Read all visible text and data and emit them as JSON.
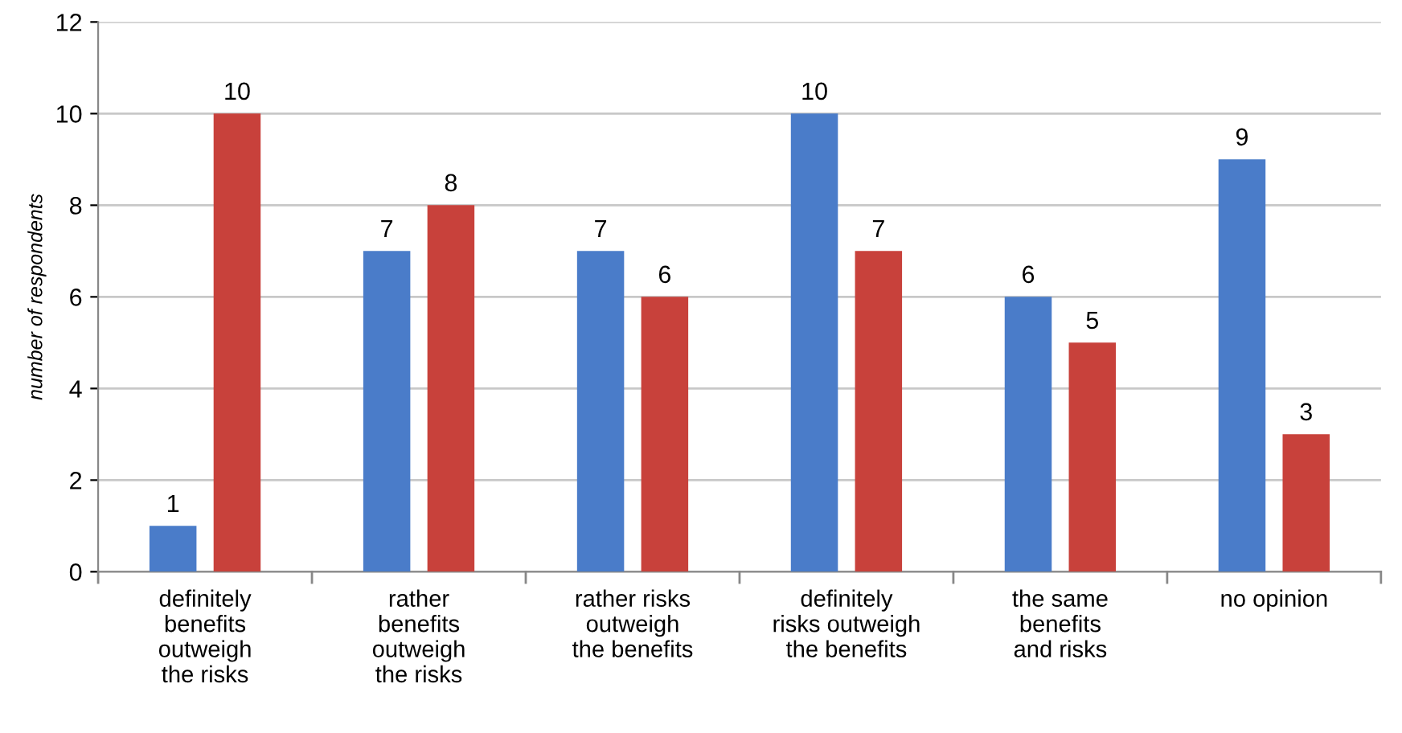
{
  "chart_data": {
    "type": "bar",
    "ylabel": "number of respondents",
    "categories": [
      "definitely\nbenefits\noutweigh\nthe risks",
      "rather\nbenefits\noutweigh\nthe risks",
      "rather risks\noutweigh\nthe benefits",
      "definitely\nrisks outweigh\nthe benefits",
      "the same\nbenefits\nand risks",
      "no opinion"
    ],
    "series": [
      {
        "color": "#4a7cc9",
        "values": [
          1,
          7,
          7,
          10,
          6,
          9
        ]
      },
      {
        "color": "#c8413b",
        "values": [
          10,
          8,
          6,
          7,
          5,
          3
        ]
      }
    ],
    "ylim": [
      0,
      12
    ],
    "yticks": [
      0,
      2,
      4,
      6,
      8,
      10,
      12
    ],
    "grid": "y",
    "data_labels": true
  }
}
